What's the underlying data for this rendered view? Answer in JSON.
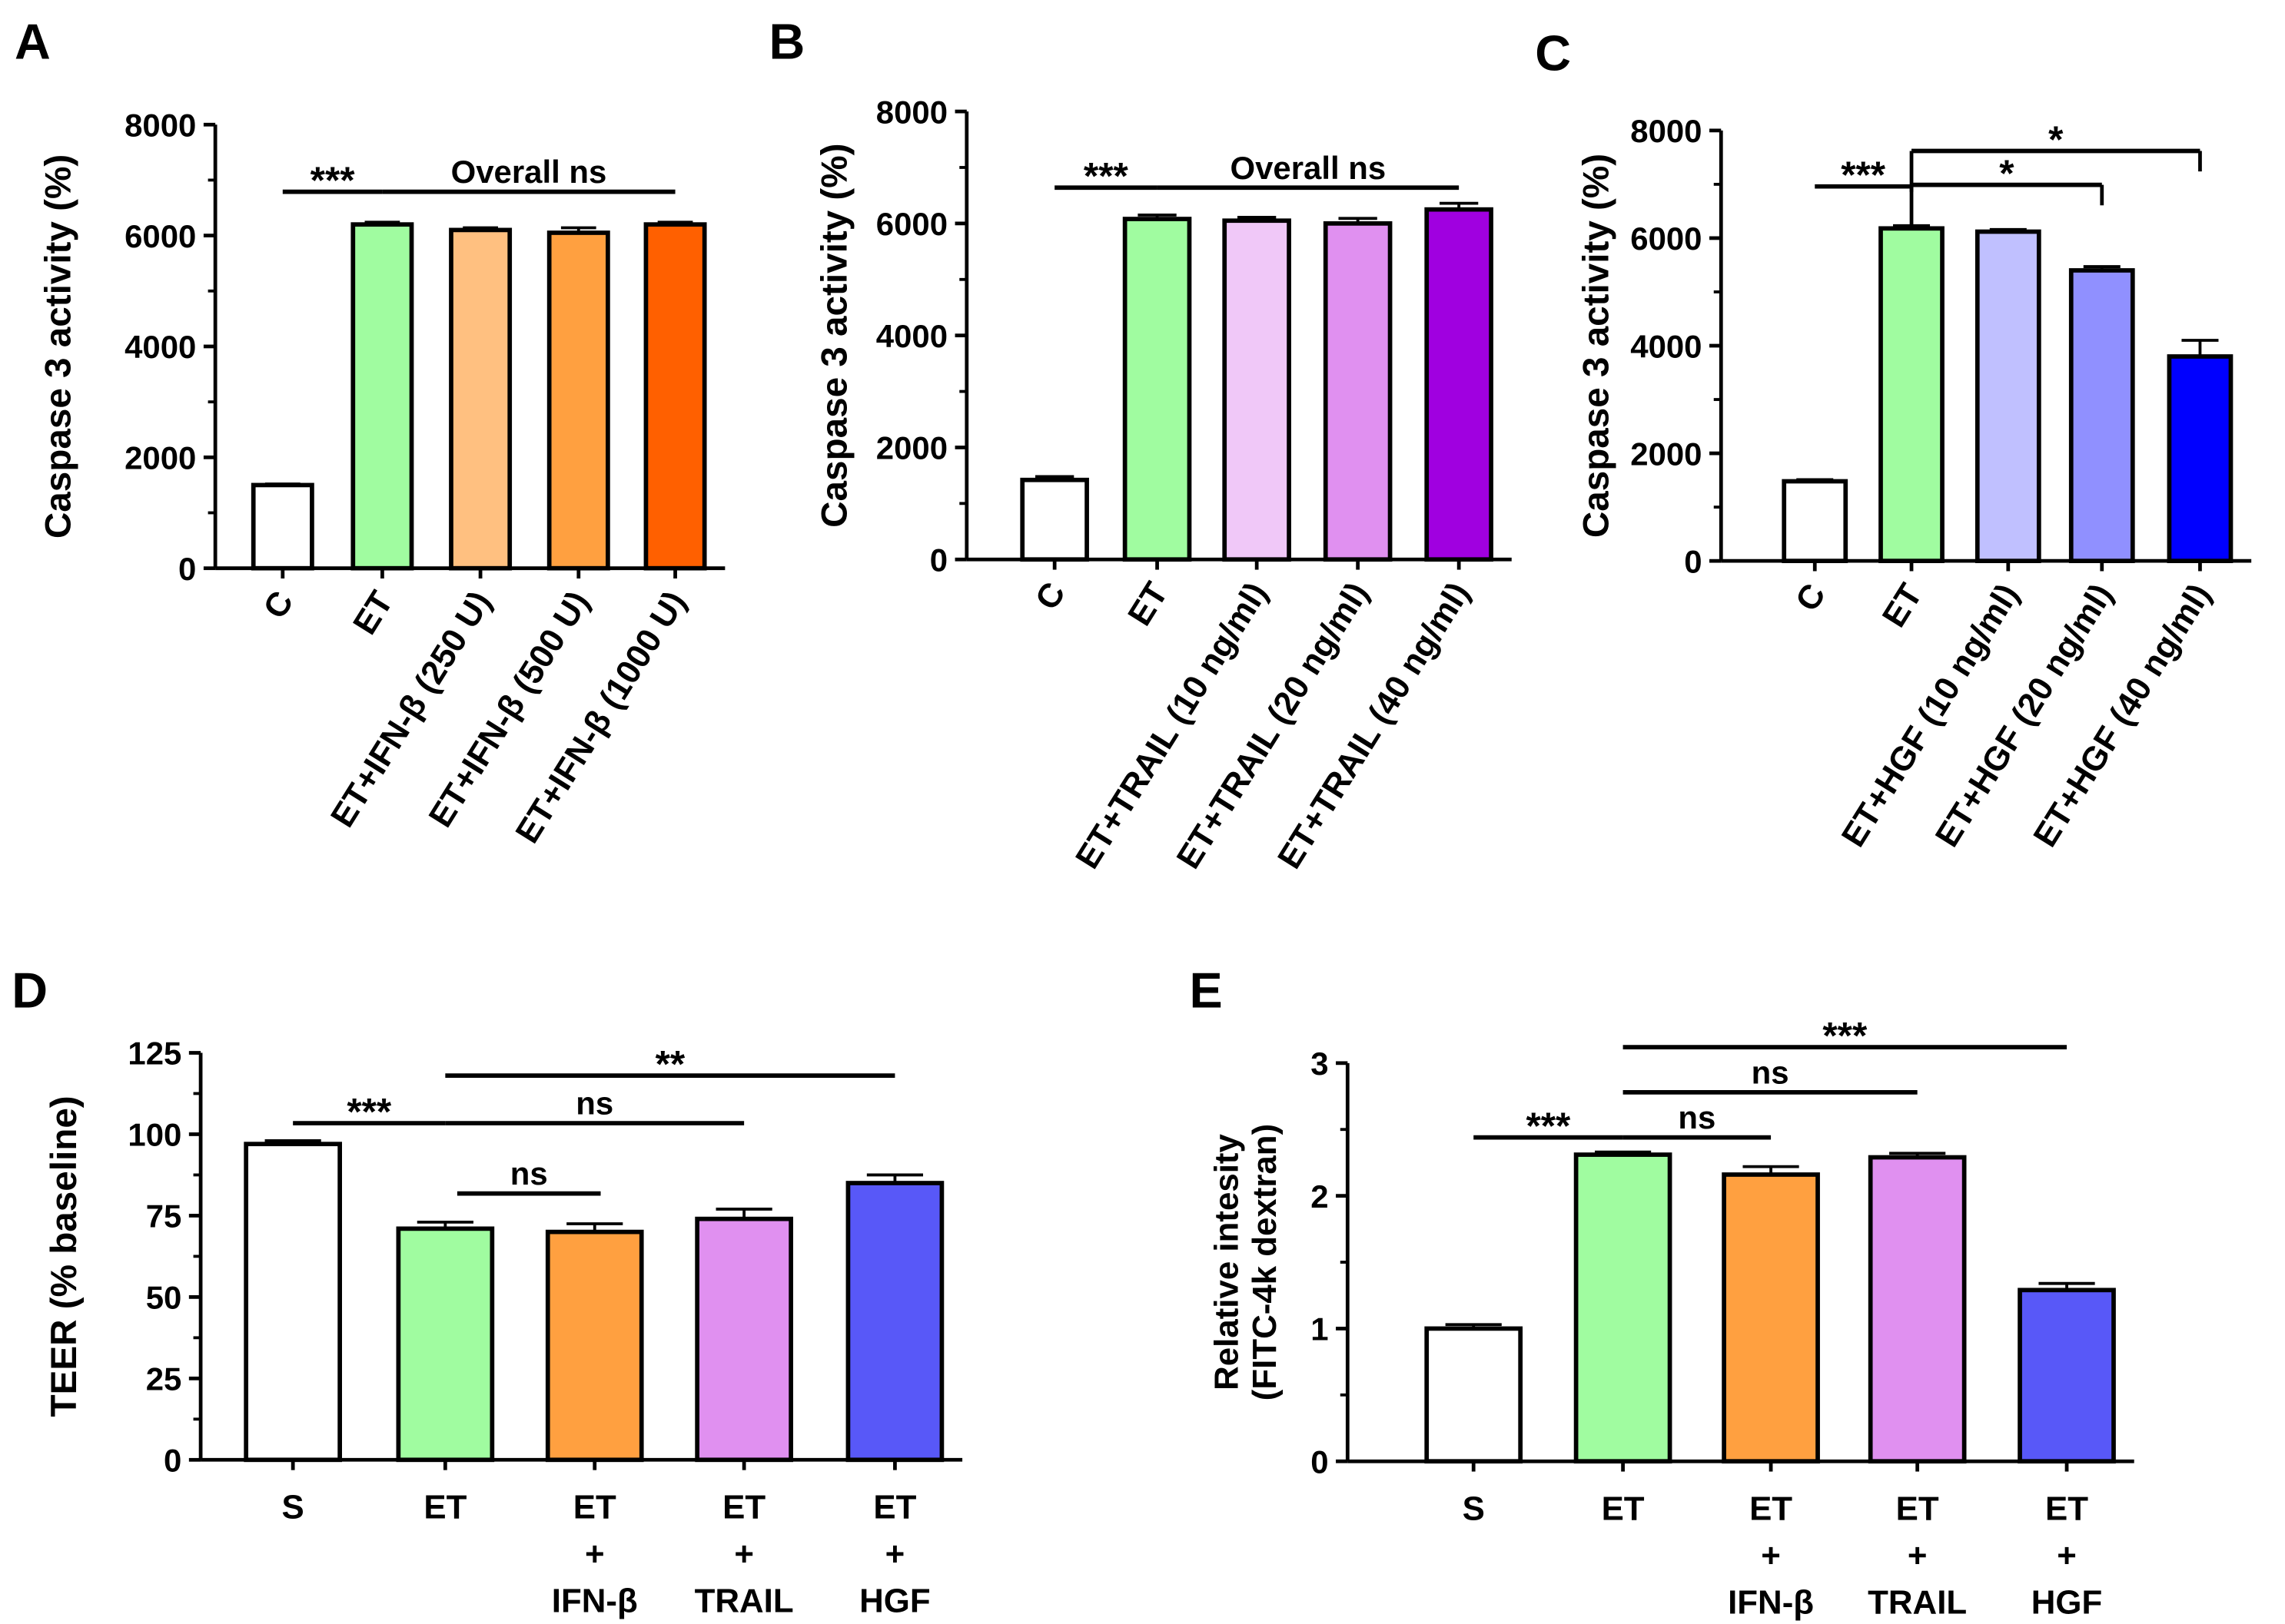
{
  "chart_data": [
    {
      "panel": "A",
      "type": "bar",
      "ylabel": "Caspase 3 activity (%)",
      "ylim": [
        0,
        8000
      ],
      "yticks": [
        0,
        2000,
        4000,
        6000,
        8000
      ],
      "categories": [
        "C",
        "ET",
        "ET+IFN-β (250 U)",
        "ET+IFN-β  (500 U)",
        "ET+IFN-β  (1000 U)"
      ],
      "values": [
        1500,
        6200,
        6100,
        6050,
        6200
      ],
      "errors": [
        20,
        40,
        40,
        90,
        40
      ],
      "colors": [
        "#ffffff",
        "#a0fca0",
        "#ffc080",
        "#ffa040",
        "#ff6000"
      ],
      "annotations": [
        {
          "from": 0,
          "to": 1,
          "y": 6790,
          "label": "***"
        },
        {
          "from": 1,
          "to": 4,
          "y": 6790,
          "label": "Overall ns"
        }
      ]
    },
    {
      "panel": "B",
      "type": "bar",
      "ylabel": "Caspase 3 activity (%)",
      "ylim": [
        0,
        8000
      ],
      "yticks": [
        0,
        2000,
        4000,
        6000,
        8000
      ],
      "categories": [
        "C",
        "ET",
        "ET+TRAIL (10 ng/ml)",
        "ET+TRAIL (20 ng/ml)",
        "ET+TRAIL (40 ng/ml)"
      ],
      "values": [
        1420,
        6080,
        6050,
        6000,
        6250
      ],
      "errors": [
        60,
        70,
        60,
        90,
        110
      ],
      "colors": [
        "#ffffff",
        "#a0fca0",
        "#f0c8f8",
        "#e090f0",
        "#a000e0"
      ],
      "annotations": [
        {
          "from": 0,
          "to": 1,
          "y": 6640,
          "label": "***"
        },
        {
          "from": 1,
          "to": 4,
          "y": 6640,
          "label": "Overall ns"
        }
      ]
    },
    {
      "panel": "C",
      "type": "bar",
      "ylabel": "Caspase 3 activity (%)",
      "ylim": [
        0,
        8000
      ],
      "yticks": [
        0,
        2000,
        4000,
        6000,
        8000
      ],
      "categories": [
        "C",
        "ET",
        "ET+HGF (10 ng/ml)",
        "ET+HGF (20 ng/ml)",
        "ET+HGF (40 ng/ml)"
      ],
      "values": [
        1480,
        6180,
        6120,
        5400,
        3800
      ],
      "errors": [
        30,
        50,
        40,
        70,
        300
      ],
      "colors": [
        "#ffffff",
        "#a0fca0",
        "#c0c0ff",
        "#9090ff",
        "#0000ff"
      ],
      "annotations": [
        {
          "from": 0,
          "to": 1,
          "y": 6960,
          "label": "***"
        },
        {
          "from": 1,
          "to": 3,
          "y": 6990,
          "label": "*",
          "bracket": true
        },
        {
          "from": 1,
          "to": 4,
          "y": 7620,
          "label": "*",
          "bracket": true
        }
      ]
    },
    {
      "panel": "D",
      "type": "bar",
      "ylabel": "TEER (% baseline)",
      "ylim": [
        0,
        125
      ],
      "yticks": [
        0,
        25,
        50,
        75,
        100,
        125
      ],
      "categories": [
        [
          "S"
        ],
        [
          "ET"
        ],
        [
          "ET",
          "+",
          "IFN-β"
        ],
        [
          "ET",
          "+",
          "TRAIL"
        ],
        [
          "ET",
          "+",
          "HGF"
        ]
      ],
      "values": [
        97,
        71,
        70,
        74,
        85
      ],
      "errors": [
        1,
        2,
        2.5,
        3,
        2.5
      ],
      "colors": [
        "#ffffff",
        "#a0fca0",
        "#ffa040",
        "#e090f0",
        "#5858f8"
      ],
      "annotations": [
        {
          "from": 0,
          "to": 1,
          "y": 103.4,
          "label": "***"
        },
        {
          "from": 1,
          "to": 3,
          "y": 103.4,
          "label": "ns"
        },
        {
          "from": 1.08,
          "to": 2.04,
          "y": 81.8,
          "label": "ns"
        },
        {
          "from": 1,
          "to": 4,
          "y": 118,
          "label": "**"
        }
      ]
    },
    {
      "panel": "E",
      "type": "bar",
      "ylabel": "Relative intesity",
      "ylabel2": "(FITC-4k dextran)",
      "ylim": [
        0,
        3
      ],
      "yticks": [
        0,
        1,
        2,
        3
      ],
      "categories": [
        [
          "S"
        ],
        [
          "ET"
        ],
        [
          "ET",
          "+",
          "IFN-β"
        ],
        [
          "ET",
          "+",
          "TRAIL"
        ],
        [
          "ET",
          "+",
          "HGF"
        ]
      ],
      "values": [
        1.0,
        2.31,
        2.16,
        2.29,
        1.29
      ],
      "errors": [
        0.03,
        0.02,
        0.06,
        0.03,
        0.05
      ],
      "colors": [
        "#ffffff",
        "#a0fca0",
        "#ffa040",
        "#e090f0",
        "#5858f8"
      ],
      "annotations": [
        {
          "from": 0,
          "to": 1,
          "y": 2.44,
          "label": "***"
        },
        {
          "from": 1,
          "to": 2,
          "y": 2.44,
          "label": "ns"
        },
        {
          "from": 1,
          "to": 3,
          "y": 2.78,
          "label": "ns"
        },
        {
          "from": 1,
          "to": 4,
          "y": 3.12,
          "label": "***"
        }
      ]
    }
  ]
}
